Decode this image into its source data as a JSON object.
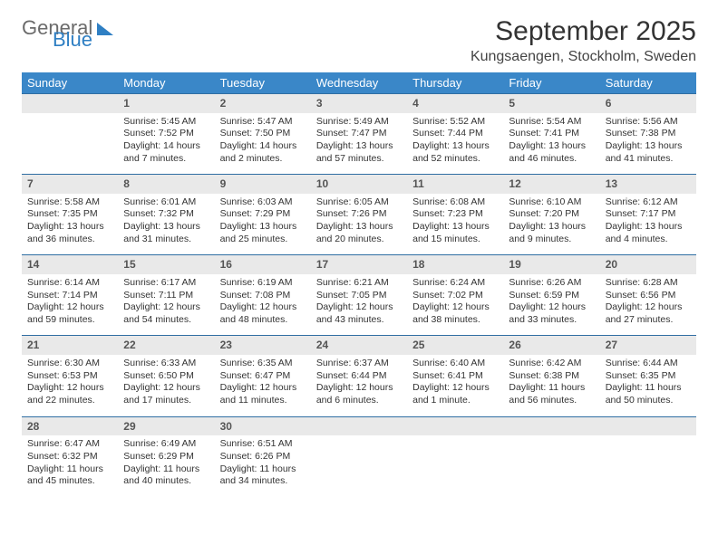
{
  "brand": {
    "part1": "General",
    "part2": "Blue"
  },
  "title": "September 2025",
  "location": "Kungsaengen, Stockholm, Sweden",
  "colors": {
    "header_bg": "#3a87c8",
    "divider": "#2f6ea3",
    "daynum_bg": "#e9e9e9",
    "logo_gray": "#6b6b6b",
    "logo_blue": "#2f7fc3"
  },
  "weekdays": [
    "Sunday",
    "Monday",
    "Tuesday",
    "Wednesday",
    "Thursday",
    "Friday",
    "Saturday"
  ],
  "weeks": [
    {
      "nums": [
        "",
        "1",
        "2",
        "3",
        "4",
        "5",
        "6"
      ],
      "cells": [
        "",
        "Sunrise: 5:45 AM\nSunset: 7:52 PM\nDaylight: 14 hours and 7 minutes.",
        "Sunrise: 5:47 AM\nSunset: 7:50 PM\nDaylight: 14 hours and 2 minutes.",
        "Sunrise: 5:49 AM\nSunset: 7:47 PM\nDaylight: 13 hours and 57 minutes.",
        "Sunrise: 5:52 AM\nSunset: 7:44 PM\nDaylight: 13 hours and 52 minutes.",
        "Sunrise: 5:54 AM\nSunset: 7:41 PM\nDaylight: 13 hours and 46 minutes.",
        "Sunrise: 5:56 AM\nSunset: 7:38 PM\nDaylight: 13 hours and 41 minutes."
      ]
    },
    {
      "nums": [
        "7",
        "8",
        "9",
        "10",
        "11",
        "12",
        "13"
      ],
      "cells": [
        "Sunrise: 5:58 AM\nSunset: 7:35 PM\nDaylight: 13 hours and 36 minutes.",
        "Sunrise: 6:01 AM\nSunset: 7:32 PM\nDaylight: 13 hours and 31 minutes.",
        "Sunrise: 6:03 AM\nSunset: 7:29 PM\nDaylight: 13 hours and 25 minutes.",
        "Sunrise: 6:05 AM\nSunset: 7:26 PM\nDaylight: 13 hours and 20 minutes.",
        "Sunrise: 6:08 AM\nSunset: 7:23 PM\nDaylight: 13 hours and 15 minutes.",
        "Sunrise: 6:10 AM\nSunset: 7:20 PM\nDaylight: 13 hours and 9 minutes.",
        "Sunrise: 6:12 AM\nSunset: 7:17 PM\nDaylight: 13 hours and 4 minutes."
      ]
    },
    {
      "nums": [
        "14",
        "15",
        "16",
        "17",
        "18",
        "19",
        "20"
      ],
      "cells": [
        "Sunrise: 6:14 AM\nSunset: 7:14 PM\nDaylight: 12 hours and 59 minutes.",
        "Sunrise: 6:17 AM\nSunset: 7:11 PM\nDaylight: 12 hours and 54 minutes.",
        "Sunrise: 6:19 AM\nSunset: 7:08 PM\nDaylight: 12 hours and 48 minutes.",
        "Sunrise: 6:21 AM\nSunset: 7:05 PM\nDaylight: 12 hours and 43 minutes.",
        "Sunrise: 6:24 AM\nSunset: 7:02 PM\nDaylight: 12 hours and 38 minutes.",
        "Sunrise: 6:26 AM\nSunset: 6:59 PM\nDaylight: 12 hours and 33 minutes.",
        "Sunrise: 6:28 AM\nSunset: 6:56 PM\nDaylight: 12 hours and 27 minutes."
      ]
    },
    {
      "nums": [
        "21",
        "22",
        "23",
        "24",
        "25",
        "26",
        "27"
      ],
      "cells": [
        "Sunrise: 6:30 AM\nSunset: 6:53 PM\nDaylight: 12 hours and 22 minutes.",
        "Sunrise: 6:33 AM\nSunset: 6:50 PM\nDaylight: 12 hours and 17 minutes.",
        "Sunrise: 6:35 AM\nSunset: 6:47 PM\nDaylight: 12 hours and 11 minutes.",
        "Sunrise: 6:37 AM\nSunset: 6:44 PM\nDaylight: 12 hours and 6 minutes.",
        "Sunrise: 6:40 AM\nSunset: 6:41 PM\nDaylight: 12 hours and 1 minute.",
        "Sunrise: 6:42 AM\nSunset: 6:38 PM\nDaylight: 11 hours and 56 minutes.",
        "Sunrise: 6:44 AM\nSunset: 6:35 PM\nDaylight: 11 hours and 50 minutes."
      ]
    },
    {
      "nums": [
        "28",
        "29",
        "30",
        "",
        "",
        "",
        ""
      ],
      "cells": [
        "Sunrise: 6:47 AM\nSunset: 6:32 PM\nDaylight: 11 hours and 45 minutes.",
        "Sunrise: 6:49 AM\nSunset: 6:29 PM\nDaylight: 11 hours and 40 minutes.",
        "Sunrise: 6:51 AM\nSunset: 6:26 PM\nDaylight: 11 hours and 34 minutes.",
        "",
        "",
        "",
        ""
      ]
    }
  ]
}
